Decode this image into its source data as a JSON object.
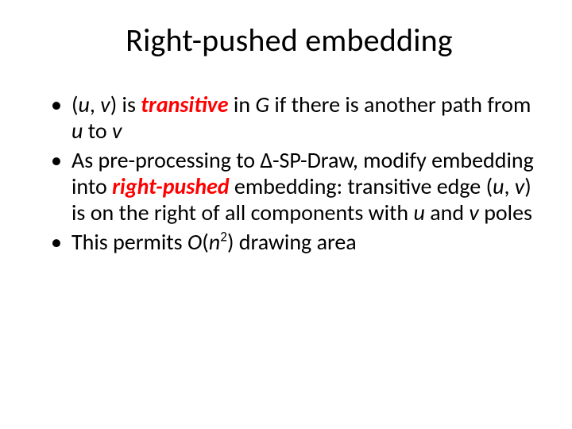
{
  "title": "Right-pushed embedding",
  "bullets": {
    "b1": {
      "p1": "(",
      "u": "u",
      "sep": ", ",
      "v": "v",
      "p2": ") is ",
      "transitive": "transitive",
      "p3": " in ",
      "G": "G",
      "p4": " if there is another path from ",
      "u2": "u",
      "to": " to ",
      "v2": "v"
    },
    "b2": {
      "p1": "As pre-processing to Δ-SP-Draw, modify embedding into ",
      "rp": "right-pushed",
      "p2": " embedding: transitive edge (",
      "u": "u",
      "sep": ", ",
      "v": "v",
      "p3": ") is on the right of all components with ",
      "u2": "u",
      "and": " and ",
      "v2": "v",
      "poles": " poles"
    },
    "b3": {
      "p1": "This permits ",
      "O": "O",
      "p2": "(",
      "n": "n",
      "exp": "2",
      "p3": ") drawing area"
    }
  },
  "colors": {
    "text": "#000000",
    "accent": "#ff0000",
    "background": "#ffffff"
  },
  "fontsize": {
    "title": 40,
    "body": 28
  }
}
